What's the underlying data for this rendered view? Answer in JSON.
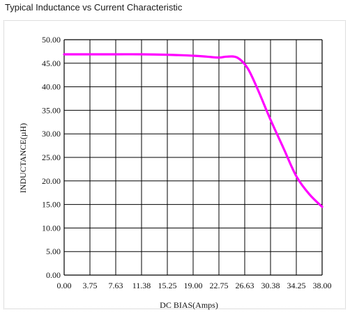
{
  "page_title": "Typical Inductance vs Current Characteristic",
  "colors": {
    "curve": "#ff00ff",
    "grid": "#000000",
    "frame": "#bdbdbd"
  },
  "chart_data": {
    "type": "line",
    "title": "",
    "xlabel": "DC BIAS(Amps)",
    "ylabel": "INDUCTANCE(µH)",
    "x_tick_labels": [
      "0.00",
      "3.75",
      "7.63",
      "11.38",
      "15.25",
      "19.00",
      "22.75",
      "26.63",
      "30.38",
      "34.25",
      "38.00"
    ],
    "y_tick_labels": [
      "50.00",
      "45.00",
      "40.00",
      "35.00",
      "30.00",
      "25.00",
      "20.00",
      "15.00",
      "10.00",
      "5.00",
      "0.00"
    ],
    "xlim": [
      0,
      38
    ],
    "ylim": [
      0,
      50
    ],
    "grid": true,
    "series": [
      {
        "color": "#ff00ff",
        "x": [
          0,
          3.8,
          7.6,
          11.4,
          15.2,
          19.0,
          21.0,
          22.8,
          24.0,
          25.5,
          27.0,
          28.5,
          30.4,
          32.3,
          34.2,
          36.1,
          38.0
        ],
        "y": [
          46.9,
          46.9,
          46.9,
          46.9,
          46.8,
          46.6,
          46.4,
          46.2,
          46.4,
          46.2,
          44.0,
          39.5,
          33.0,
          27.0,
          21.0,
          17.2,
          14.5
        ]
      }
    ]
  }
}
